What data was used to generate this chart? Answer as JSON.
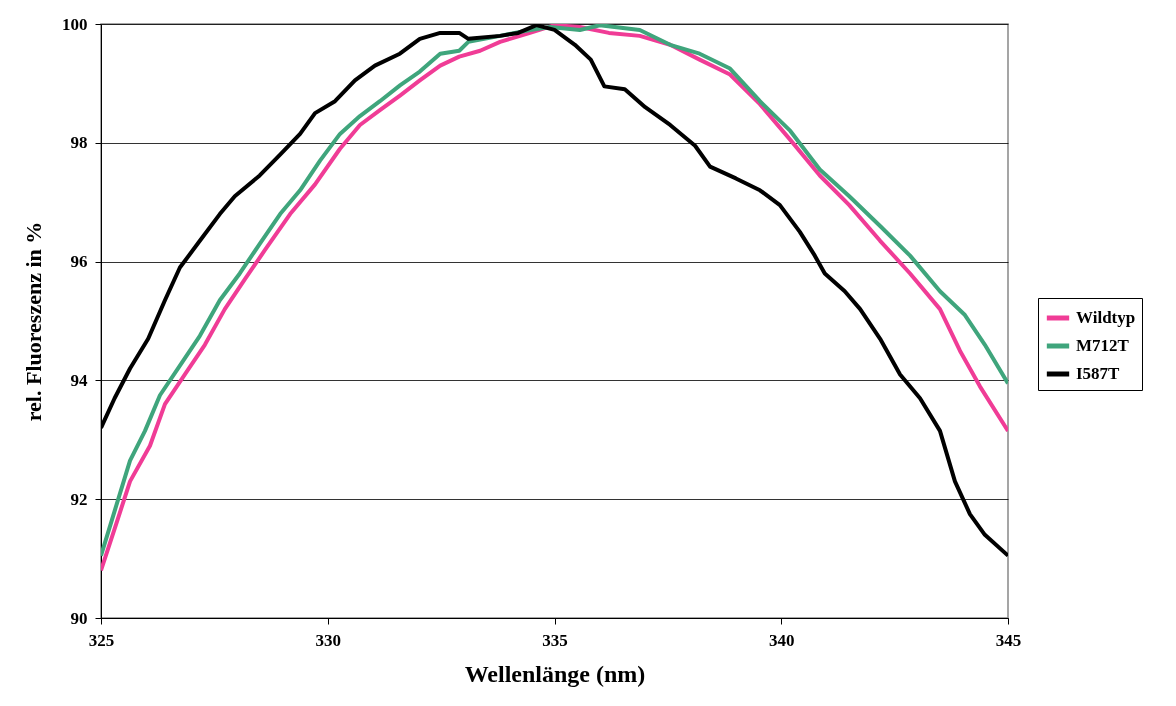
{
  "chart_data": {
    "type": "line",
    "xlabel": "Wellenlänge (nm)",
    "ylabel": "rel. Fluoreszenz in %",
    "xlim": [
      325,
      345
    ],
    "xticks": [
      325,
      330,
      335,
      340,
      345
    ],
    "ylim": [
      90,
      100
    ],
    "yticks": [
      90,
      92,
      94,
      96,
      98,
      100
    ],
    "grid": "y",
    "legend": "right",
    "line_style": "solid",
    "marker": "none",
    "series": [
      {
        "name": "Wildtyp",
        "color": "#f03c96",
        "x": [
          325,
          325.3,
          325.64,
          326.08,
          326.41,
          326.85,
          327.29,
          327.73,
          328.17,
          328.62,
          329.17,
          329.72,
          330.27,
          330.71,
          331.15,
          331.6,
          332.03,
          332.48,
          332.9,
          333.36,
          333.8,
          334.46,
          335,
          335.56,
          336.2,
          336.88,
          337.55,
          338.2,
          338.87,
          339.53,
          340.2,
          340.85,
          341.5,
          342.18,
          342.84,
          343.5,
          343.94,
          344.38,
          345
        ],
        "values": [
          90.8,
          91.5,
          92.3,
          92.9,
          93.6,
          94.1,
          94.6,
          95.2,
          95.7,
          96.2,
          96.8,
          97.3,
          97.9,
          98.3,
          98.55,
          98.8,
          99.05,
          99.3,
          99.45,
          99.55,
          99.7,
          99.85,
          99.98,
          99.95,
          99.85,
          99.8,
          99.65,
          99.4,
          99.15,
          98.65,
          98.05,
          97.45,
          96.95,
          96.35,
          95.8,
          95.2,
          94.5,
          93.9,
          93.15
        ]
      },
      {
        "name": "M712T",
        "color": "#3fa57c",
        "x": [
          325,
          325.3,
          325.64,
          325.97,
          326.3,
          326.74,
          327.18,
          327.62,
          328.06,
          328.5,
          328.95,
          329.39,
          329.83,
          330.27,
          330.71,
          331.15,
          331.6,
          332.03,
          332.48,
          332.9,
          333.1,
          333.8,
          334.46,
          334.9,
          335.56,
          336,
          336.88,
          337.55,
          338.2,
          338.87,
          339.53,
          340.2,
          340.85,
          341.5,
          342.18,
          342.84,
          343.5,
          344.05,
          344.49,
          345
        ],
        "values": [
          91.05,
          91.8,
          92.65,
          93.15,
          93.75,
          94.25,
          94.75,
          95.35,
          95.8,
          96.3,
          96.8,
          97.2,
          97.7,
          98.15,
          98.45,
          98.7,
          98.97,
          99.2,
          99.5,
          99.55,
          99.7,
          99.8,
          99.9,
          99.95,
          99.9,
          99.98,
          99.9,
          99.65,
          99.5,
          99.25,
          98.7,
          98.2,
          97.55,
          97.1,
          96.6,
          96.1,
          95.5,
          95.1,
          94.6,
          93.95
        ]
      },
      {
        "name": "I587T",
        "color": "#000000",
        "x": [
          325,
          325.3,
          325.64,
          326.04,
          326.41,
          326.74,
          327.18,
          327.62,
          327.95,
          328.5,
          328.95,
          329.39,
          329.72,
          330.16,
          330.6,
          331.04,
          331.59,
          332.03,
          332.48,
          332.9,
          333.1,
          333.8,
          334.2,
          334.6,
          335,
          335.45,
          335.8,
          336.1,
          336.55,
          337,
          337.55,
          338.1,
          338.43,
          339,
          339.53,
          339.97,
          340.41,
          340.74,
          340.96,
          341.4,
          341.74,
          342.18,
          342.62,
          343.06,
          343.5,
          343.83,
          344.16,
          344.49,
          345
        ],
        "values": [
          93.2,
          93.7,
          94.2,
          94.7,
          95.35,
          95.9,
          96.35,
          96.8,
          97.1,
          97.45,
          97.8,
          98.15,
          98.5,
          98.7,
          99.05,
          99.3,
          99.5,
          99.75,
          99.85,
          99.85,
          99.75,
          99.8,
          99.85,
          99.98,
          99.9,
          99.65,
          99.4,
          98.95,
          98.9,
          98.6,
          98.3,
          97.95,
          97.6,
          97.4,
          97.2,
          96.95,
          96.5,
          96.1,
          95.8,
          95.5,
          95.2,
          94.7,
          94.1,
          93.7,
          93.15,
          92.3,
          91.75,
          91.4,
          91.05
        ]
      }
    ]
  }
}
